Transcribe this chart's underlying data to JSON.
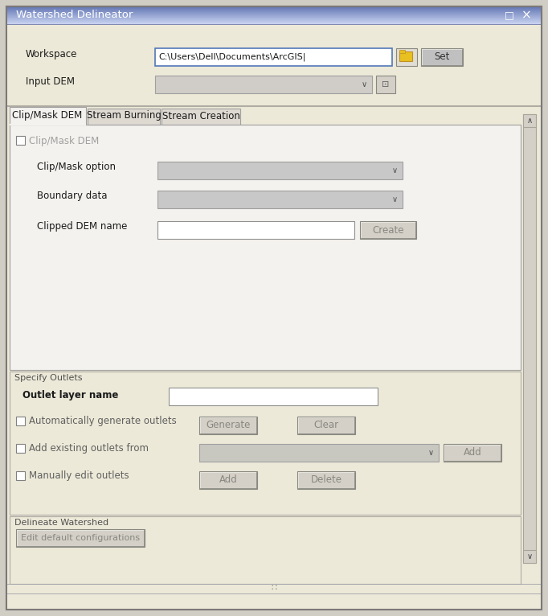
{
  "title": "Watershed Delineator",
  "bg_outer": "#d4d0c8",
  "bg_window": "#ece9d8",
  "titlebar_color": "#0a246a",
  "titlebar_grad_start": "#6b84bf",
  "titlebar_grad_end": "#b8c8e8",
  "body_bg": "#ece9d8",
  "panel_bg": "#f0f0f0",
  "tab_panel_bg": "#f4f2ee",
  "section_bg": "#ece9d8",
  "tabs": [
    "Clip/Mask DEM",
    "Stream Burning",
    "Stream Creation"
  ],
  "workspace_label": "Workspace",
  "workspace_value": "C:\\Users\\Dell\\Documents\\ArcGIS|",
  "input_dem_label": "Input DEM",
  "clip_mask_checkbox": "Clip/Mask DEM",
  "clip_mask_option": "Clip/Mask option",
  "boundary_data": "Boundary data",
  "clipped_dem": "Clipped DEM name",
  "specify_outlets": "Specify Outlets",
  "outlet_layer": "Outlet layer name",
  "auto_generate": "Automatically generate outlets",
  "add_existing": "Add existing outlets from",
  "manually_edit": "Manually edit outlets",
  "delineate": "Delineate Watershed",
  "edit_default": "Edit default configurations",
  "btn_set": "Set",
  "btn_create": "Create",
  "btn_generate": "Generate",
  "btn_clear": "Clear",
  "btn_add1": "Add",
  "btn_add2": "Add",
  "btn_delete": "Delete",
  "font_size": 8.5,
  "label_color": "#1a1a1a",
  "disabled_text": "#888888",
  "input_bg": "#ffffff",
  "dropdown_bg": "#c8c8c8",
  "btn_enabled_bg": "#c0c0c0",
  "btn_disabled_bg": "#d4d0c8",
  "btn_disabled_text": "#888880",
  "scrollbar_bg": "#d4d0c8",
  "scrollbar_btn": "#aca899"
}
